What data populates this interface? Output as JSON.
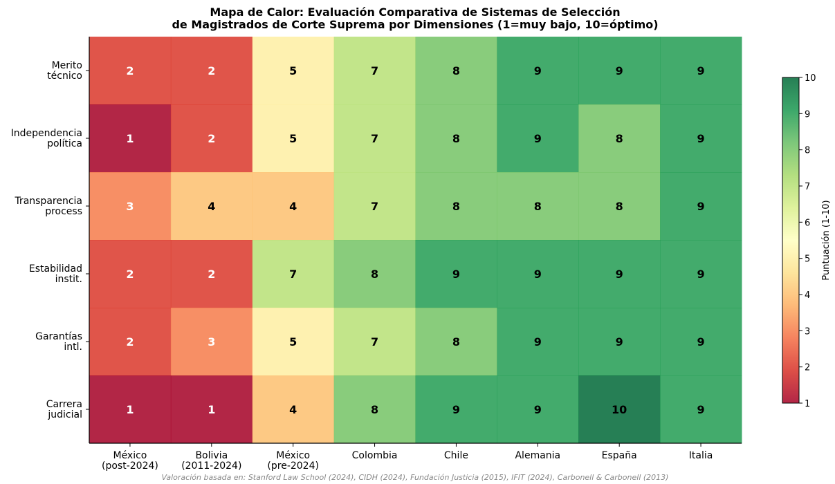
{
  "chart_data": {
    "type": "heatmap",
    "title": "Mapa de Calor: Evaluación Comparativa de Sistemas de Selección\nde Magistrados de Corte Suprema por Dimensiones (1=muy bajo, 10=óptimo)",
    "columns": [
      "México\n(post-2024)",
      "Bolivia\n(2011-2024)",
      "México\n(pre-2024)",
      "Colombia",
      "Chile",
      "Alemania",
      "España",
      "Italia"
    ],
    "rows": [
      "Merito\ntécnico",
      "Independencia\npolítica",
      "Transparencia\nprocess",
      "Estabilidad\ninstit.",
      "Garantías\nintl.",
      "Carrera\njudicial"
    ],
    "values": [
      [
        2,
        2,
        5,
        7,
        8,
        9,
        9,
        9
      ],
      [
        1,
        2,
        5,
        7,
        8,
        9,
        8,
        9
      ],
      [
        3,
        4,
        4,
        7,
        8,
        8,
        8,
        9
      ],
      [
        2,
        2,
        7,
        8,
        9,
        9,
        9,
        9
      ],
      [
        2,
        3,
        5,
        7,
        8,
        9,
        9,
        9
      ],
      [
        1,
        1,
        4,
        8,
        9,
        9,
        10,
        9
      ]
    ],
    "colormap": "RdYlGn",
    "colorbar_label": "Puntuación (1-10)",
    "clim": [
      1,
      10
    ],
    "cticks": [
      1,
      2,
      3,
      4,
      5,
      6,
      7,
      8,
      9,
      10
    ],
    "footnote": "Valoración basada en: Stanford Law School (2024), CIDH (2024), Fundación Justicia (2015), IFIT (2024), Carbonell & Carbonell (2013)"
  }
}
